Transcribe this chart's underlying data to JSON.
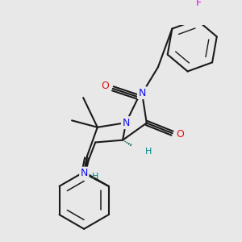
{
  "background_color": "#e8e8e8",
  "bond_color": "#1a1a1a",
  "bond_width": 1.5,
  "figsize": [
    3.0,
    3.0
  ],
  "dpi": 100,
  "colors": {
    "N": "#1010ee",
    "O": "#dd1111",
    "F": "#ee00ee",
    "H": "#008888",
    "C": "#1a1a1a"
  },
  "xlim": [
    -1.6,
    1.8
  ],
  "ylim": [
    -1.9,
    1.9
  ]
}
